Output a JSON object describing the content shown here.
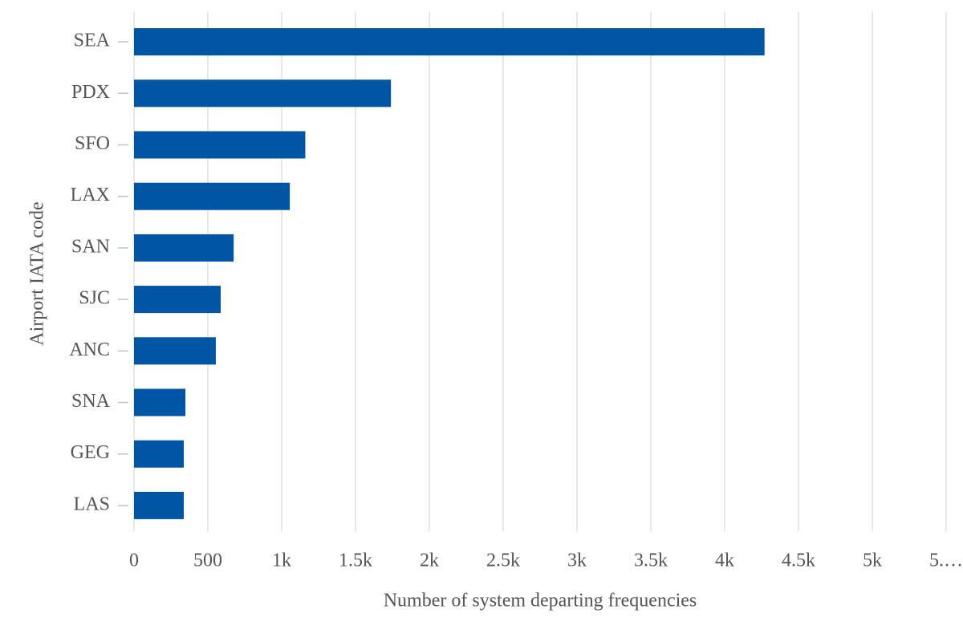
{
  "chart_data": {
    "type": "bar",
    "orientation": "horizontal",
    "x_label": "Number of system departing frequencies",
    "y_label": "Airport IATA code",
    "categories": [
      "SEA",
      "PDX",
      "SFO",
      "LAX",
      "SAN",
      "SJC",
      "ANC",
      "SNA",
      "GEG",
      "LAS"
    ],
    "values": [
      4270,
      1740,
      1160,
      1055,
      675,
      587,
      554,
      348,
      337,
      337
    ],
    "color": "#0055a5",
    "xlim": [
      0,
      5500
    ],
    "xticks": [
      0,
      500,
      {
        "value": 1000,
        "label": "1k"
      },
      {
        "value": 1500,
        "label": "1.5k"
      },
      {
        "value": 2000,
        "label": "2k"
      },
      {
        "value": 2500,
        "label": "2.5k"
      },
      {
        "value": 3000,
        "label": "3k"
      },
      {
        "value": 3500,
        "label": "3.5k"
      },
      {
        "value": 4000,
        "label": "4k"
      },
      {
        "value": 4500,
        "label": "4.5k"
      },
      {
        "value": 5000,
        "label": "5k"
      },
      {
        "value": 5500,
        "label": "5.…"
      }
    ],
    "grid": true
  }
}
